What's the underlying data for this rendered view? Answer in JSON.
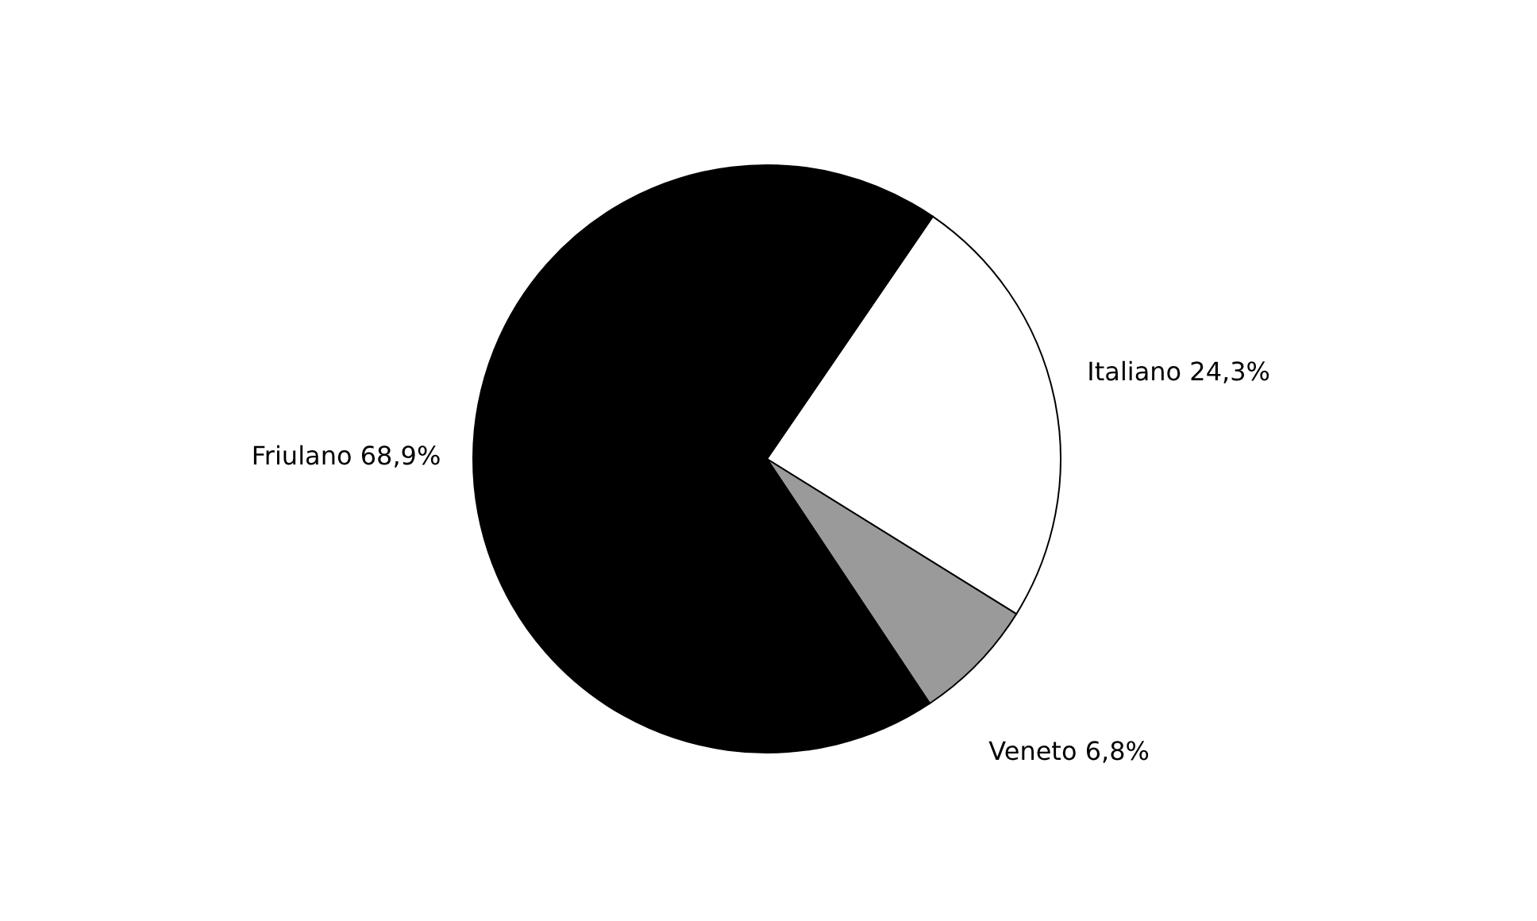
{
  "chart_data": {
    "type": "pie",
    "categories": [
      "Italiano",
      "Veneto",
      "Friulano"
    ],
    "values": [
      24.3,
      6.8,
      68.9
    ],
    "colors": [
      "#ffffff",
      "#9a9a9a",
      "#000000"
    ],
    "value_labels": [
      "24,3%",
      "6,8%",
      "68,9%"
    ]
  }
}
